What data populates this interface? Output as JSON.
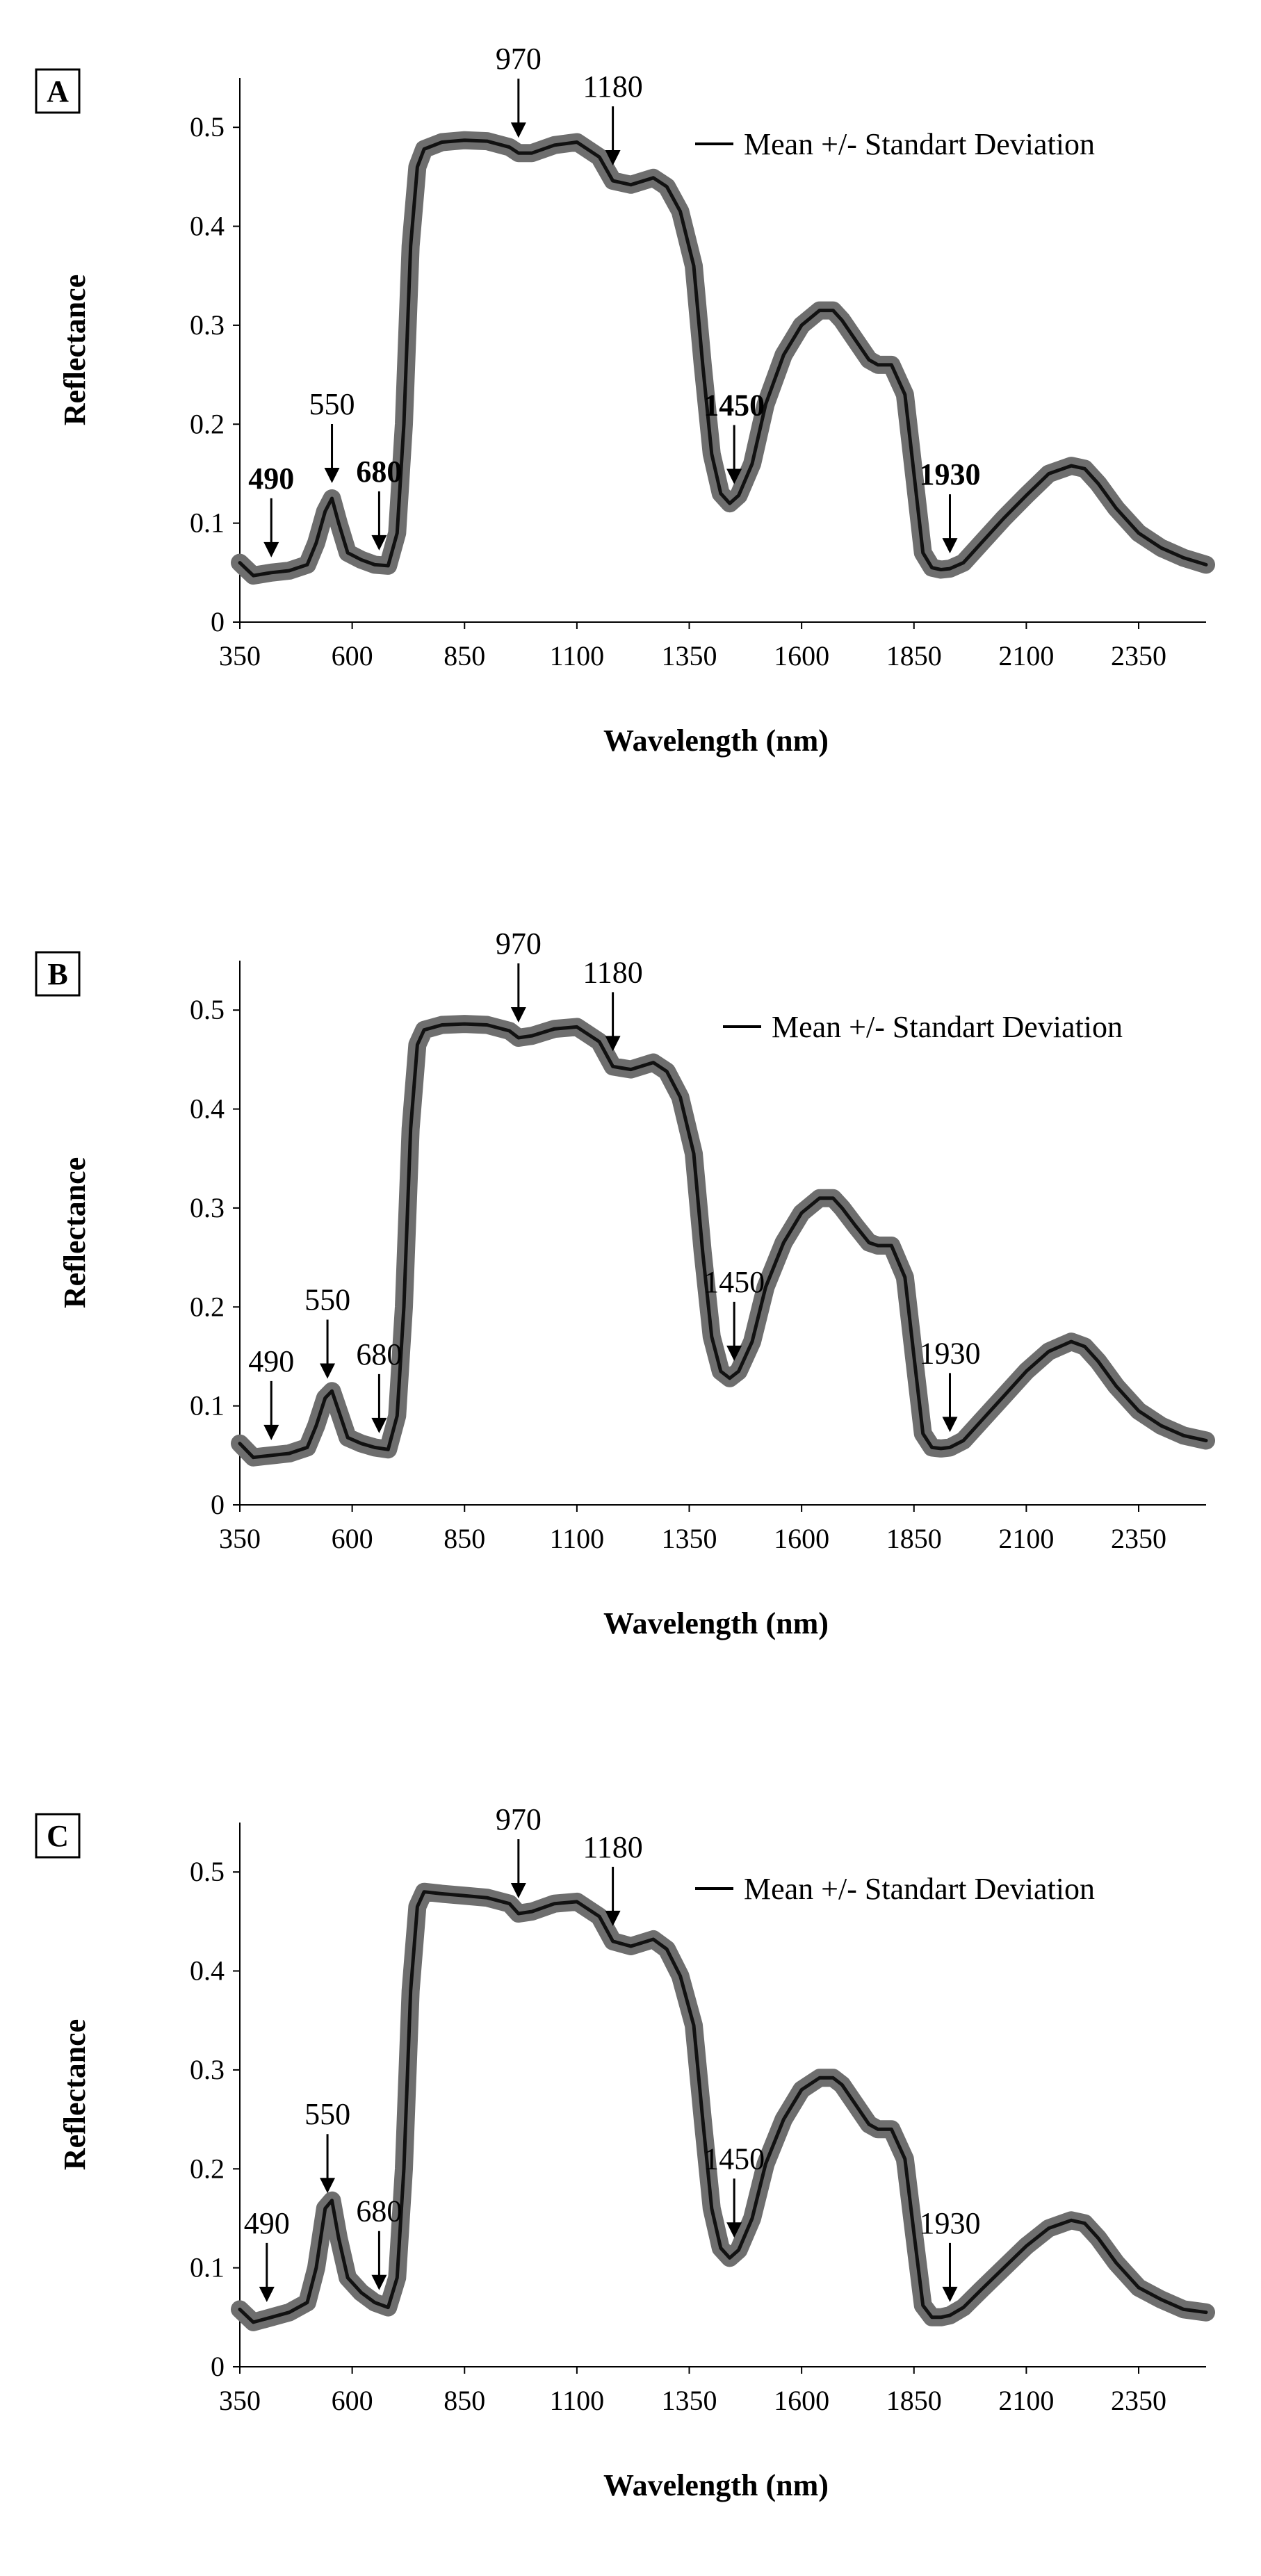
{
  "chart_data": [
    {
      "type": "line",
      "panel": "A",
      "title": "",
      "xlabel": "Wavelength (nm)",
      "ylabel": "Reflectance",
      "xlim": [
        350,
        2500
      ],
      "ylim": [
        0,
        0.55
      ],
      "x_ticks": [
        "350",
        "600",
        "850",
        "1100",
        "1350",
        "1600",
        "1850",
        "2100",
        "2350"
      ],
      "y_ticks": [
        "0",
        "0.1",
        "0.2",
        "0.3",
        "0.4",
        "0.5"
      ],
      "legend": "Mean  +/- Standart  Deviation",
      "series": [
        {
          "name": "Mean",
          "x": [
            350,
            380,
            420,
            460,
            500,
            520,
            540,
            555,
            570,
            590,
            620,
            650,
            680,
            700,
            715,
            730,
            745,
            760,
            800,
            850,
            900,
            950,
            970,
            1000,
            1050,
            1100,
            1150,
            1180,
            1220,
            1270,
            1300,
            1330,
            1360,
            1380,
            1400,
            1420,
            1440,
            1460,
            1490,
            1520,
            1560,
            1600,
            1640,
            1670,
            1690,
            1720,
            1750,
            1770,
            1800,
            1830,
            1850,
            1870,
            1890,
            1910,
            1930,
            1960,
            2000,
            2050,
            2100,
            2150,
            2200,
            2230,
            2260,
            2300,
            2350,
            2400,
            2450,
            2500
          ],
          "values": [
            0.06,
            0.047,
            0.05,
            0.052,
            0.058,
            0.08,
            0.112,
            0.125,
            0.1,
            0.07,
            0.063,
            0.058,
            0.057,
            0.09,
            0.2,
            0.38,
            0.46,
            0.478,
            0.485,
            0.487,
            0.486,
            0.48,
            0.474,
            0.474,
            0.482,
            0.485,
            0.47,
            0.446,
            0.442,
            0.449,
            0.44,
            0.415,
            0.36,
            0.26,
            0.17,
            0.13,
            0.12,
            0.128,
            0.16,
            0.22,
            0.27,
            0.3,
            0.315,
            0.315,
            0.305,
            0.285,
            0.265,
            0.26,
            0.26,
            0.23,
            0.15,
            0.07,
            0.055,
            0.053,
            0.054,
            0.06,
            0.08,
            0.105,
            0.128,
            0.15,
            0.158,
            0.155,
            0.14,
            0.115,
            0.09,
            0.075,
            0.065,
            0.058
          ]
        }
      ],
      "annotations": [
        {
          "label": "490",
          "x": 420,
          "y": 0.05,
          "bold": true
        },
        {
          "label": "550",
          "x": 555,
          "y": 0.125,
          "bold": false
        },
        {
          "label": "680",
          "x": 660,
          "y": 0.057,
          "bold": true
        },
        {
          "label": "970",
          "x": 970,
          "y": 0.474,
          "bold": false
        },
        {
          "label": "1180",
          "x": 1180,
          "y": 0.446,
          "bold": false
        },
        {
          "label": "1450",
          "x": 1450,
          "y": 0.124,
          "bold": true
        },
        {
          "label": "1930",
          "x": 1930,
          "y": 0.054,
          "bold": true
        }
      ]
    },
    {
      "type": "line",
      "panel": "B",
      "title": "",
      "xlabel": "Wavelength (nm)",
      "ylabel": "Reflectance",
      "xlim": [
        350,
        2500
      ],
      "ylim": [
        0,
        0.55
      ],
      "x_ticks": [
        "350",
        "600",
        "850",
        "1100",
        "1350",
        "1600",
        "1850",
        "2100",
        "2350"
      ],
      "y_ticks": [
        "0",
        "0.1",
        "0.2",
        "0.3",
        "0.4",
        "0.5"
      ],
      "legend": "Mean  +/- Standart Deviation",
      "series": [
        {
          "name": "Mean",
          "x": [
            350,
            380,
            420,
            460,
            500,
            520,
            540,
            555,
            570,
            590,
            620,
            650,
            680,
            700,
            715,
            730,
            745,
            760,
            800,
            850,
            900,
            950,
            970,
            1000,
            1050,
            1100,
            1150,
            1180,
            1220,
            1270,
            1300,
            1330,
            1360,
            1380,
            1400,
            1420,
            1440,
            1460,
            1490,
            1520,
            1560,
            1600,
            1640,
            1670,
            1690,
            1720,
            1750,
            1770,
            1800,
            1830,
            1850,
            1870,
            1890,
            1910,
            1930,
            1960,
            2000,
            2050,
            2100,
            2150,
            2200,
            2230,
            2260,
            2300,
            2350,
            2400,
            2450,
            2500
          ],
          "values": [
            0.062,
            0.048,
            0.05,
            0.052,
            0.058,
            0.08,
            0.108,
            0.115,
            0.095,
            0.068,
            0.062,
            0.058,
            0.056,
            0.09,
            0.2,
            0.38,
            0.465,
            0.48,
            0.485,
            0.486,
            0.485,
            0.479,
            0.472,
            0.474,
            0.481,
            0.483,
            0.468,
            0.443,
            0.44,
            0.447,
            0.438,
            0.412,
            0.355,
            0.255,
            0.17,
            0.135,
            0.128,
            0.135,
            0.165,
            0.22,
            0.265,
            0.295,
            0.31,
            0.31,
            0.3,
            0.282,
            0.265,
            0.262,
            0.262,
            0.23,
            0.15,
            0.072,
            0.058,
            0.057,
            0.058,
            0.065,
            0.085,
            0.11,
            0.135,
            0.155,
            0.165,
            0.16,
            0.145,
            0.12,
            0.095,
            0.08,
            0.07,
            0.065
          ]
        }
      ],
      "annotations": [
        {
          "label": "490",
          "x": 420,
          "y": 0.05,
          "bold": false
        },
        {
          "label": "550",
          "x": 545,
          "y": 0.112,
          "bold": false
        },
        {
          "label": "680",
          "x": 660,
          "y": 0.057,
          "bold": false
        },
        {
          "label": "970",
          "x": 970,
          "y": 0.472,
          "bold": false
        },
        {
          "label": "1180",
          "x": 1180,
          "y": 0.443,
          "bold": false
        },
        {
          "label": "1450",
          "x": 1450,
          "y": 0.13,
          "bold": false
        },
        {
          "label": "1930",
          "x": 1930,
          "y": 0.058,
          "bold": false
        }
      ]
    },
    {
      "type": "line",
      "panel": "C",
      "title": "",
      "xlabel": "Wavelength (nm)",
      "ylabel": "Reflectance",
      "xlim": [
        350,
        2500
      ],
      "ylim": [
        0,
        0.55
      ],
      "x_ticks": [
        "350",
        "600",
        "850",
        "1100",
        "1350",
        "1600",
        "1850",
        "2100",
        "2350"
      ],
      "y_ticks": [
        "0",
        "0.1",
        "0.2",
        "0.3",
        "0.4",
        "0.5"
      ],
      "legend": "Mean  +/- Standart Deviation",
      "series": [
        {
          "name": "Mean",
          "x": [
            350,
            380,
            420,
            460,
            500,
            520,
            540,
            555,
            570,
            590,
            620,
            650,
            680,
            700,
            715,
            730,
            745,
            760,
            800,
            850,
            900,
            950,
            970,
            1000,
            1050,
            1100,
            1150,
            1180,
            1220,
            1270,
            1300,
            1330,
            1360,
            1380,
            1400,
            1420,
            1440,
            1460,
            1490,
            1520,
            1560,
            1600,
            1640,
            1670,
            1690,
            1720,
            1750,
            1770,
            1800,
            1830,
            1850,
            1870,
            1890,
            1910,
            1930,
            1960,
            2000,
            2050,
            2100,
            2150,
            2200,
            2230,
            2260,
            2300,
            2350,
            2400,
            2450,
            2500
          ],
          "values": [
            0.058,
            0.045,
            0.05,
            0.055,
            0.065,
            0.1,
            0.16,
            0.168,
            0.13,
            0.09,
            0.075,
            0.065,
            0.06,
            0.09,
            0.2,
            0.38,
            0.465,
            0.48,
            0.478,
            0.476,
            0.474,
            0.468,
            0.458,
            0.46,
            0.468,
            0.47,
            0.455,
            0.43,
            0.425,
            0.432,
            0.422,
            0.395,
            0.345,
            0.25,
            0.16,
            0.12,
            0.11,
            0.118,
            0.15,
            0.205,
            0.25,
            0.28,
            0.292,
            0.292,
            0.285,
            0.265,
            0.245,
            0.24,
            0.24,
            0.21,
            0.135,
            0.062,
            0.05,
            0.05,
            0.052,
            0.06,
            0.078,
            0.1,
            0.122,
            0.14,
            0.148,
            0.145,
            0.13,
            0.105,
            0.08,
            0.068,
            0.058,
            0.055
          ]
        }
      ],
      "annotations": [
        {
          "label": "490",
          "x": 410,
          "y": 0.05,
          "bold": false
        },
        {
          "label": "550",
          "x": 545,
          "y": 0.16,
          "bold": false
        },
        {
          "label": "680",
          "x": 660,
          "y": 0.062,
          "bold": false
        },
        {
          "label": "970",
          "x": 970,
          "y": 0.458,
          "bold": false
        },
        {
          "label": "1180",
          "x": 1180,
          "y": 0.43,
          "bold": false
        },
        {
          "label": "1450",
          "x": 1450,
          "y": 0.115,
          "bold": false
        },
        {
          "label": "1930",
          "x": 1930,
          "y": 0.05,
          "bold": false
        }
      ]
    }
  ]
}
